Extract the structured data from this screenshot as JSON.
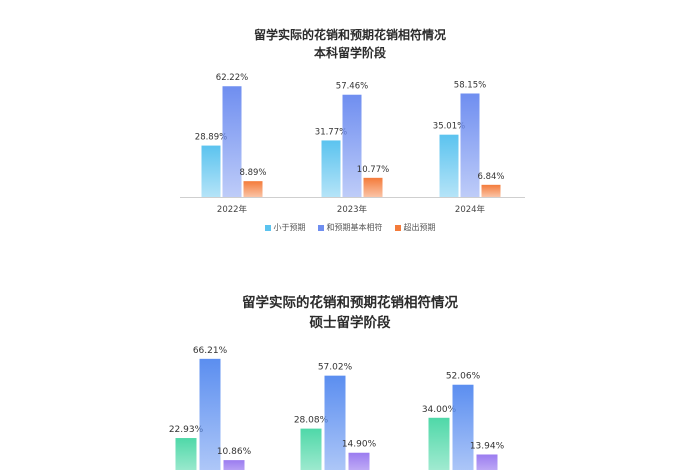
{
  "chart_data": [
    {
      "type": "bar",
      "title": "留学实际的花销和预期花销相符情况",
      "subtitle": "本科留学阶段",
      "categories": [
        "2022年",
        "2023年",
        "2024年"
      ],
      "series": [
        {
          "name": "小于预期",
          "values": [
            28.89,
            31.77,
            35.01
          ],
          "color": "#5bc3ef"
        },
        {
          "name": "和预期基本相符",
          "values": [
            62.22,
            57.46,
            58.15
          ],
          "color": "#6f8ef0"
        },
        {
          "name": "超出预期",
          "values": [
            8.89,
            10.77,
            6.84
          ],
          "color": "#f47b3a"
        }
      ],
      "value_labels": [
        [
          "28.89%",
          "31.77%",
          "35.01%"
        ],
        [
          "62.22%",
          "57.46%",
          "58.15%"
        ],
        [
          "8.89%",
          "10.77%",
          "6.84%"
        ]
      ],
      "ylim": [
        0,
        70
      ],
      "legend": "bottom"
    },
    {
      "type": "bar",
      "title": "留学实际的花销和预期花销相符情况",
      "subtitle": "硕士留学阶段",
      "categories": [
        "",
        "",
        ""
      ],
      "series": [
        {
          "values": [
            22.93,
            28.08,
            34.0
          ],
          "color": "#4fd8a8"
        },
        {
          "values": [
            66.21,
            57.02,
            52.06
          ],
          "color": "#5b8ef0"
        },
        {
          "values": [
            10.86,
            14.9,
            13.94
          ],
          "color": "#9b7cf0"
        }
      ],
      "value_labels": [
        [
          "22.93%",
          "28.08%",
          "34.00%"
        ],
        [
          "66.21%",
          "57.02%",
          "52.06%"
        ],
        [
          "10.86%",
          "14.90%",
          "13.94%"
        ]
      ],
      "ylim": [
        0,
        70
      ]
    }
  ]
}
